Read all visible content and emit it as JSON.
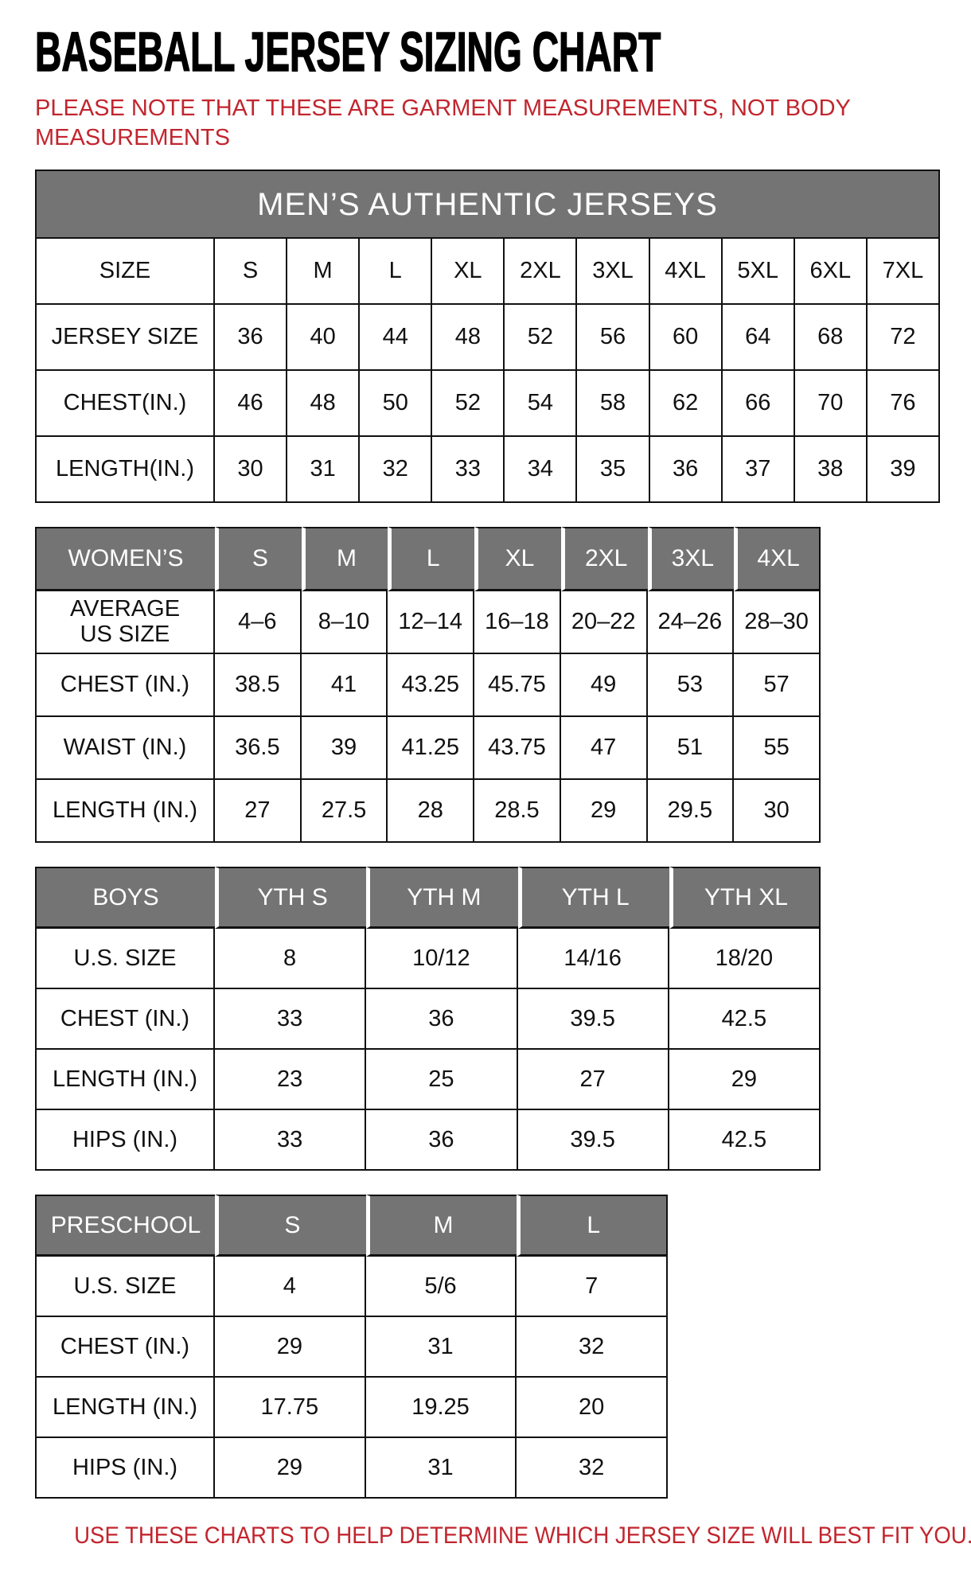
{
  "page": {
    "title": "BASEBALL JERSEY SIZING CHART",
    "note": "PLEASE NOTE THAT THESE ARE GARMENT MEASUREMENTS, NOT BODY MEASUREMENTS",
    "footer": "USE THESE CHARTS TO HELP DETERMINE WHICH JERSEY SIZE WILL BEST FIT YOU.",
    "colors": {
      "accent_red": "#c2252e",
      "header_gray": "#747474",
      "border_black": "#111111"
    }
  },
  "tables": [
    {
      "name": "mens-authentic-jerseys",
      "banner": "MEN’S AUTHENTIC JERSEYS",
      "header_gray": false,
      "header": [
        "SIZE",
        "S",
        "M",
        "L",
        "XL",
        "2XL",
        "3XL",
        "4XL",
        "5XL",
        "6XL",
        "7XL"
      ],
      "rows": [
        {
          "label": "JERSEY SIZE",
          "values": [
            "36",
            "40",
            "44",
            "48",
            "52",
            "56",
            "60",
            "64",
            "68",
            "72"
          ]
        },
        {
          "label": "CHEST(IN.)",
          "values": [
            "46",
            "48",
            "50",
            "52",
            "54",
            "58",
            "62",
            "66",
            "70",
            "76"
          ]
        },
        {
          "label": "LENGTH(IN.)",
          "values": [
            "30",
            "31",
            "32",
            "33",
            "34",
            "35",
            "36",
            "37",
            "38",
            "39"
          ]
        }
      ]
    },
    {
      "name": "womens",
      "banner": null,
      "header_gray": true,
      "header": [
        "WOMEN’S",
        "S",
        "M",
        "L",
        "XL",
        "2XL",
        "3XL",
        "4XL"
      ],
      "rows": [
        {
          "label": "AVERAGE\nUS SIZE",
          "values": [
            "4–6",
            "8–10",
            "12–14",
            "16–18",
            "20–22",
            "24–26",
            "28–30"
          ]
        },
        {
          "label": "CHEST (IN.)",
          "values": [
            "38.5",
            "41",
            "43.25",
            "45.75",
            "49",
            "53",
            "57"
          ]
        },
        {
          "label": "WAIST (IN.)",
          "values": [
            "36.5",
            "39",
            "41.25",
            "43.75",
            "47",
            "51",
            "55"
          ]
        },
        {
          "label": "LENGTH (IN.)",
          "values": [
            "27",
            "27.5",
            "28",
            "28.5",
            "29",
            "29.5",
            "30"
          ]
        }
      ]
    },
    {
      "name": "boys",
      "banner": null,
      "header_gray": true,
      "header": [
        "BOYS",
        "YTH S",
        "YTH M",
        "YTH L",
        "YTH XL"
      ],
      "rows": [
        {
          "label": "U.S. SIZE",
          "values": [
            "8",
            "10/12",
            "14/16",
            "18/20"
          ]
        },
        {
          "label": "CHEST (IN.)",
          "values": [
            "33",
            "36",
            "39.5",
            "42.5"
          ]
        },
        {
          "label": "LENGTH (IN.)",
          "values": [
            "23",
            "25",
            "27",
            "29"
          ]
        },
        {
          "label": "HIPS (IN.)",
          "values": [
            "33",
            "36",
            "39.5",
            "42.5"
          ]
        }
      ]
    },
    {
      "name": "preschool",
      "banner": null,
      "header_gray": true,
      "header": [
        "PRESCHOOL",
        "S",
        "M",
        "L"
      ],
      "rows": [
        {
          "label": "U.S. SIZE",
          "values": [
            "4",
            "5/6",
            "7"
          ]
        },
        {
          "label": "CHEST (IN.)",
          "values": [
            "29",
            "31",
            "32"
          ]
        },
        {
          "label": "LENGTH (IN.)",
          "values": [
            "17.75",
            "19.25",
            "20"
          ]
        },
        {
          "label": "HIPS (IN.)",
          "values": [
            "29",
            "31",
            "32"
          ]
        }
      ]
    }
  ]
}
